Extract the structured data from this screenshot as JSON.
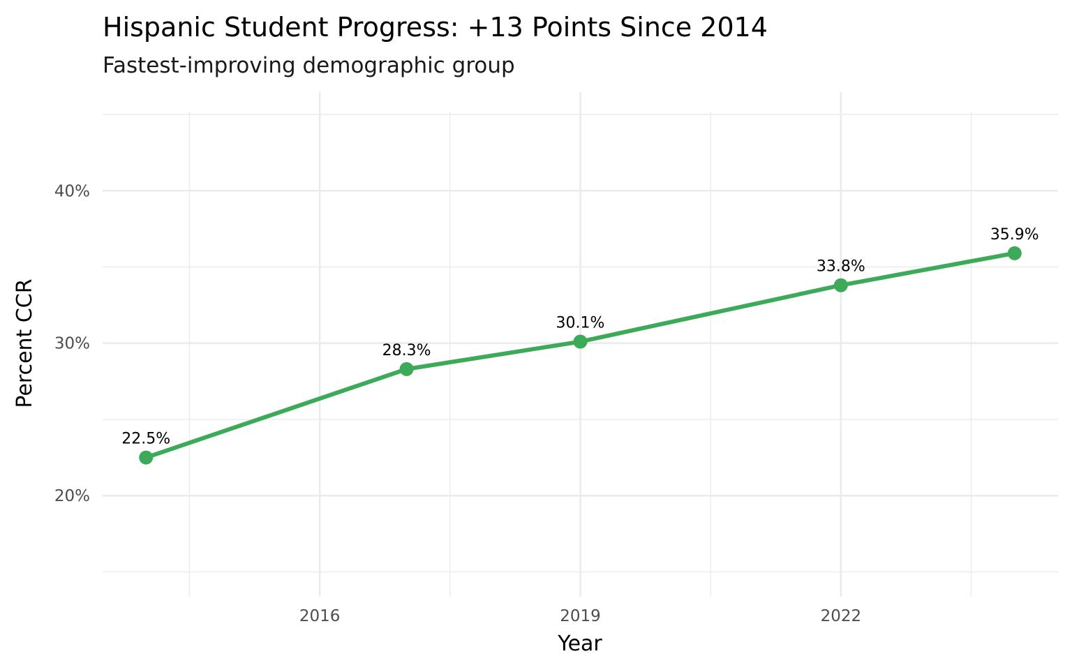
{
  "chart_data": {
    "type": "line",
    "title": "Hispanic Student Progress: +13 Points Since 2014",
    "subtitle": "Fastest-improving demographic group",
    "xlabel": "Year",
    "ylabel": "Percent CCR",
    "x": [
      2014,
      2017,
      2019,
      2022,
      2024
    ],
    "series": [
      {
        "name": "Hispanic",
        "values": [
          22.5,
          28.3,
          30.1,
          33.8,
          35.9
        ],
        "labels": [
          "22.5%",
          "28.3%",
          "30.1%",
          "33.8%",
          "35.9%"
        ],
        "color": "#3DAA5A"
      }
    ],
    "xlim": [
      2013.5,
      2024.5
    ],
    "ylim": [
      13.6,
      46.1
    ],
    "xticks": [
      2016,
      2019,
      2022
    ],
    "xtick_labels": [
      "2016",
      "2019",
      "2022"
    ],
    "xminor": [
      2014.5,
      2017.5,
      2020.5,
      2023.5
    ],
    "yticks": [
      20,
      30,
      40
    ],
    "ytick_labels": [
      "20%",
      "30%",
      "40%"
    ],
    "yminor": [
      15,
      25,
      35,
      45
    ],
    "grid": true,
    "legend": "none"
  }
}
